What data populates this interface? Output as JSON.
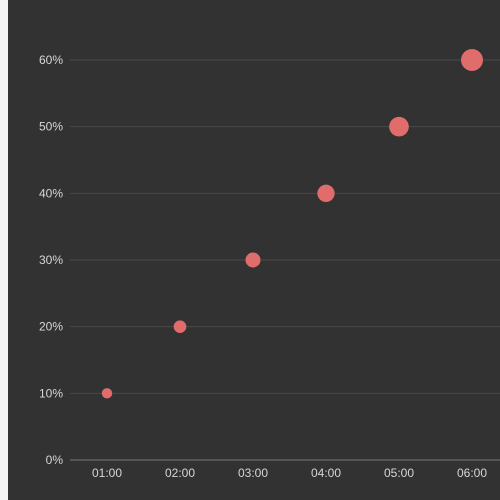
{
  "chart_data": {
    "type": "scatter",
    "title": "",
    "xlabel": "",
    "ylabel": "",
    "x_categories": [
      "01:00",
      "02:00",
      "03:00",
      "04:00",
      "05:00",
      "06:00"
    ],
    "y_ticks": [
      "0%",
      "10%",
      "20%",
      "30%",
      "40%",
      "50%",
      "60%"
    ],
    "ylim": [
      0,
      60
    ],
    "grid": true,
    "legend": "none",
    "series": [
      {
        "color": "#e06c6c",
        "points": [
          {
            "x": "01:00",
            "y": 10
          },
          {
            "x": "02:00",
            "y": 20
          },
          {
            "x": "03:00",
            "y": 30
          },
          {
            "x": "04:00",
            "y": 40
          },
          {
            "x": "05:00",
            "y": 50
          },
          {
            "x": "06:00",
            "y": 60
          }
        ]
      }
    ]
  },
  "colors": {
    "background": "#323232",
    "grid": "#4a4a4a",
    "axis": "#7a7a7a",
    "text": "#d6d6d6",
    "marker": "#e06c6c"
  }
}
